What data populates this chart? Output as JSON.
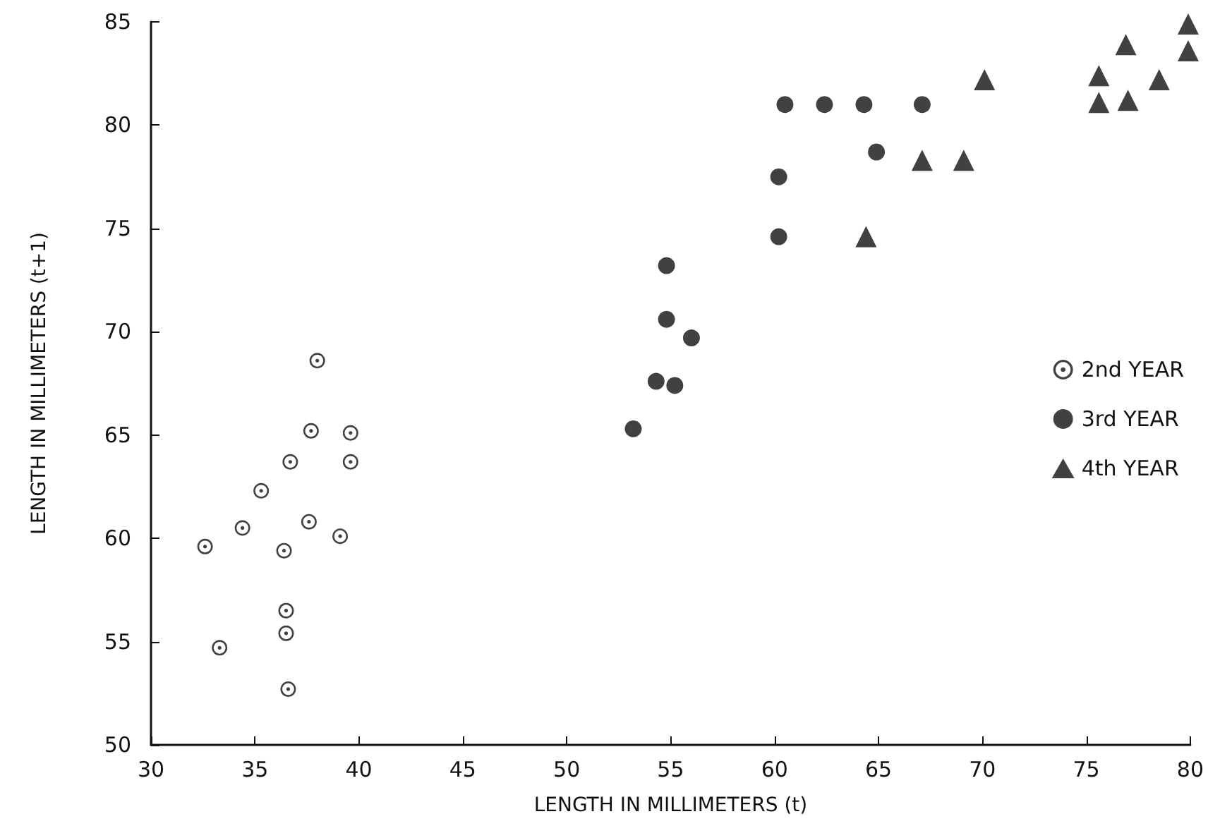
{
  "chart_data": {
    "type": "scatter",
    "xlabel": "LENGTH IN MILLIMETERS (t)",
    "ylabel": "LENGTH IN MILLIMETERS (t+1)",
    "xlim": [
      30,
      80
    ],
    "xticks": [
      30,
      35,
      40,
      45,
      50,
      55,
      60,
      65,
      70,
      75,
      80
    ],
    "ylim": [
      50,
      85
    ],
    "yticks": [
      50,
      55,
      60,
      65,
      70,
      75,
      80,
      85
    ],
    "grid": false,
    "legend": "right",
    "series": [
      {
        "name": "2nd YEAR",
        "color": "#111111",
        "marker": "circle-dot",
        "x": [
          38.0,
          37.7,
          39.6,
          36.7,
          39.6,
          35.3,
          34.4,
          37.6,
          39.1,
          32.6,
          36.4,
          36.5,
          36.5,
          33.3,
          36.6
        ],
        "values": [
          68.6,
          65.2,
          65.1,
          63.7,
          63.7,
          62.3,
          60.5,
          60.8,
          60.1,
          59.6,
          59.4,
          56.5,
          55.4,
          54.7,
          52.7
        ]
      },
      {
        "name": "3rd YEAR",
        "color": "#111111",
        "marker": "circle",
        "x": [
          60.5,
          62.4,
          64.3,
          67.1,
          64.9,
          60.2,
          60.2,
          54.8,
          54.8,
          56.0,
          54.3,
          55.2,
          53.2
        ],
        "values": [
          81.0,
          81.0,
          81.0,
          81.0,
          78.7,
          77.5,
          74.6,
          73.2,
          70.6,
          69.7,
          67.6,
          67.4,
          65.3
        ]
      },
      {
        "name": "4th YEAR",
        "color": "#111111",
        "marker": "triangle",
        "x": [
          64.4,
          67.1,
          69.1,
          70.1,
          75.6,
          75.6,
          77.0,
          76.9,
          78.5,
          79.9,
          79.9
        ],
        "values": [
          74.6,
          78.3,
          78.3,
          82.2,
          82.4,
          81.1,
          81.2,
          83.9,
          82.2,
          84.9,
          83.6
        ]
      }
    ]
  }
}
